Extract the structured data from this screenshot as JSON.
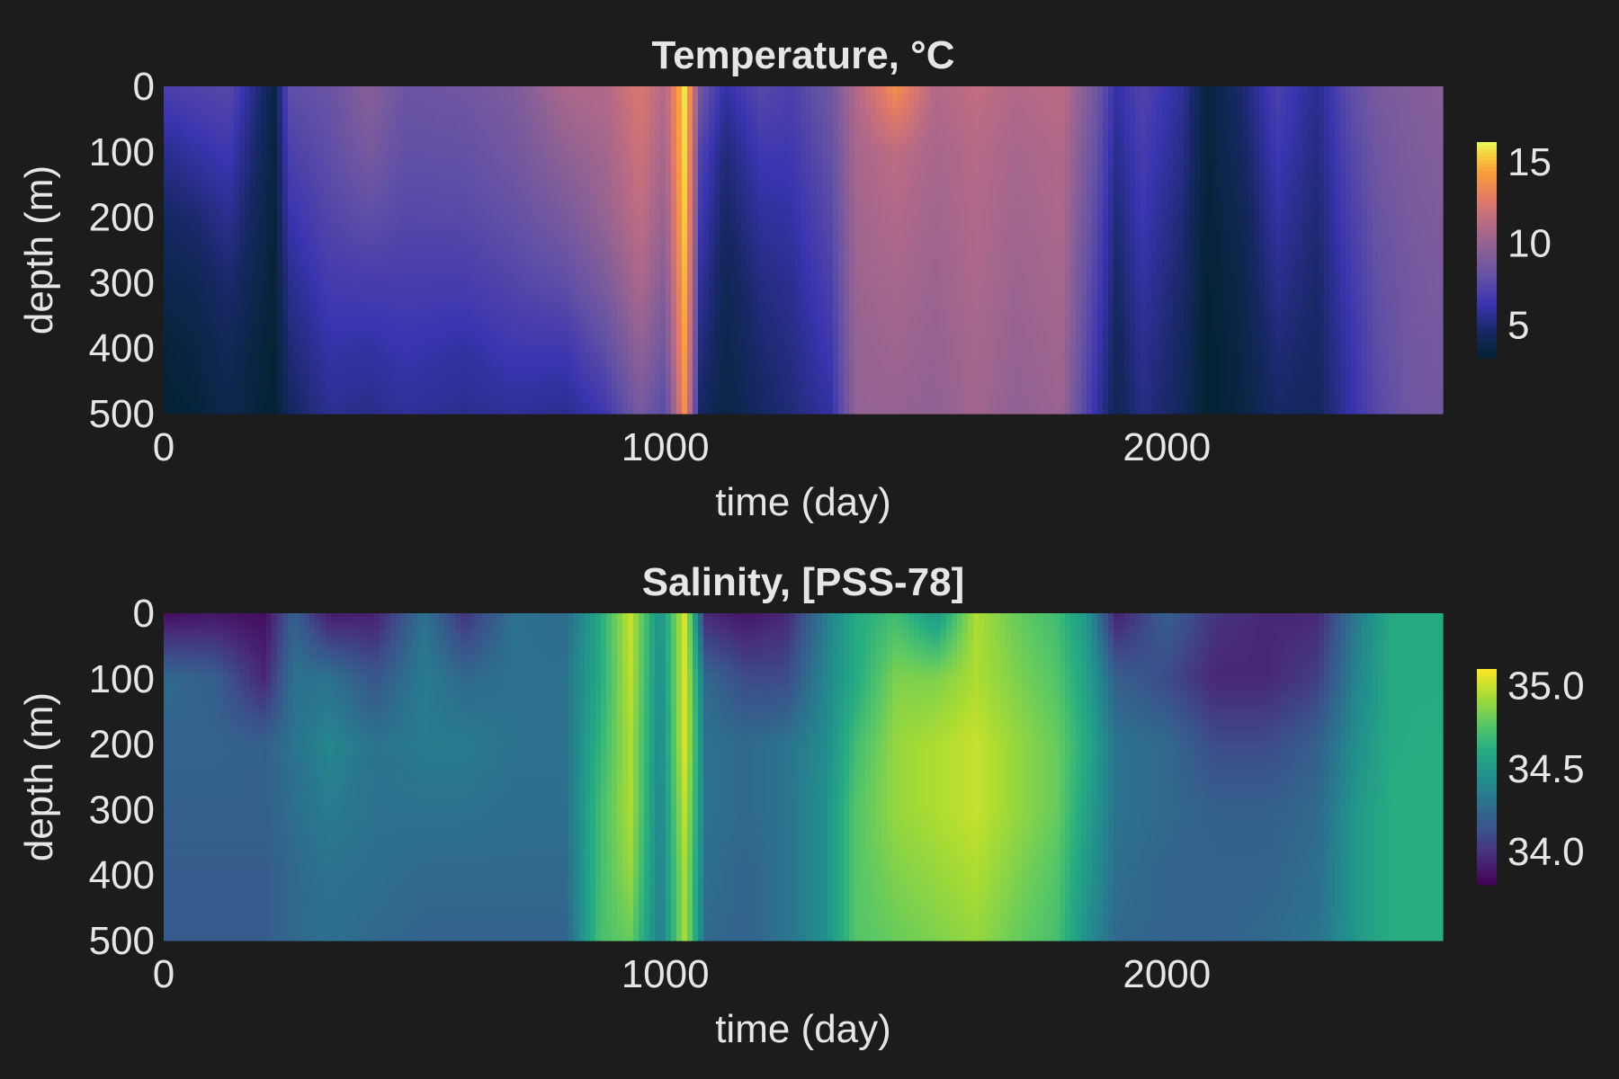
{
  "figure": {
    "background": "#1c1c1c",
    "text_color": "#e6e6e6"
  },
  "chart_data": [
    {
      "type": "heatmap",
      "title": "Temperature, °C",
      "xlabel": "time (day)",
      "ylabel": "depth (m)",
      "xlim": [
        0,
        2550
      ],
      "ylim": [
        500,
        0
      ],
      "y_inverted": true,
      "xticks": [
        0,
        1000,
        2000
      ],
      "yticks": [
        0,
        100,
        200,
        300,
        400,
        500
      ],
      "colormap": "thermal",
      "colorbar": {
        "ticks": [
          5,
          10,
          15
        ],
        "range": [
          3,
          16.2
        ]
      },
      "depths": [
        0,
        100,
        200,
        300,
        400,
        500
      ],
      "columns": [
        {
          "x": 0,
          "values": [
            7.0,
            5.5,
            4.5,
            3.8,
            3.3,
            3.0
          ]
        },
        {
          "x": 60,
          "values": [
            7.2,
            6.0,
            4.8,
            4.0,
            3.5,
            3.2
          ]
        },
        {
          "x": 130,
          "values": [
            7.5,
            6.5,
            5.6,
            4.8,
            4.2,
            3.8
          ]
        },
        {
          "x": 185,
          "values": [
            5.2,
            4.6,
            4.2,
            3.8,
            3.5,
            3.3
          ]
        },
        {
          "x": 220,
          "values": [
            3.6,
            3.4,
            3.3,
            3.2,
            3.1,
            3.0
          ]
        },
        {
          "x": 250,
          "values": [
            7.8,
            7.0,
            6.2,
            5.5,
            4.9,
            4.4
          ]
        },
        {
          "x": 330,
          "values": [
            8.2,
            7.8,
            7.3,
            6.7,
            6.1,
            5.6
          ]
        },
        {
          "x": 410,
          "values": [
            9.5,
            8.8,
            7.8,
            6.8,
            6.0,
            5.4
          ]
        },
        {
          "x": 480,
          "values": [
            8.3,
            7.9,
            7.4,
            6.8,
            6.3,
            5.8
          ]
        },
        {
          "x": 600,
          "values": [
            8.5,
            8.0,
            7.5,
            6.8,
            6.0,
            5.5
          ]
        },
        {
          "x": 700,
          "values": [
            9.0,
            8.6,
            8.0,
            7.3,
            6.5,
            5.8
          ]
        },
        {
          "x": 800,
          "values": [
            10.8,
            9.8,
            8.8,
            7.8,
            6.5,
            5.5
          ]
        },
        {
          "x": 880,
          "values": [
            11.0,
            10.5,
            10.0,
            9.0,
            7.8,
            6.5
          ]
        },
        {
          "x": 950,
          "values": [
            12.5,
            12.0,
            11.5,
            10.8,
            9.8,
            8.8
          ]
        },
        {
          "x": 1000,
          "values": [
            11.0,
            10.6,
            10.0,
            9.3,
            8.5,
            7.5
          ]
        },
        {
          "x": 1040,
          "values": [
            16.0,
            15.8,
            15.5,
            15.0,
            14.6,
            14.0
          ]
        },
        {
          "x": 1070,
          "values": [
            8.5,
            7.2,
            6.5,
            5.8,
            5.2,
            4.5
          ]
        },
        {
          "x": 1120,
          "values": [
            6.0,
            5.0,
            4.5,
            4.0,
            3.8,
            3.5
          ]
        },
        {
          "x": 1190,
          "values": [
            7.5,
            6.5,
            5.8,
            5.2,
            4.8,
            4.5
          ]
        },
        {
          "x": 1250,
          "values": [
            7.0,
            6.5,
            6.0,
            5.6,
            5.3,
            5.0
          ]
        },
        {
          "x": 1330,
          "values": [
            8.5,
            8.0,
            7.5,
            7.0,
            6.5,
            6.0
          ]
        },
        {
          "x": 1380,
          "values": [
            11.0,
            10.6,
            10.4,
            10.2,
            10.0,
            10.0
          ]
        },
        {
          "x": 1460,
          "values": [
            13.8,
            11.5,
            11.0,
            10.6,
            10.3,
            10.0
          ]
        },
        {
          "x": 1540,
          "values": [
            11.0,
            10.6,
            10.4,
            10.2,
            10.0,
            9.8
          ]
        },
        {
          "x": 1620,
          "values": [
            11.6,
            11.2,
            11.0,
            10.8,
            10.6,
            10.4
          ]
        },
        {
          "x": 1700,
          "values": [
            11.0,
            10.6,
            10.4,
            10.2,
            10.0,
            9.8
          ]
        },
        {
          "x": 1790,
          "values": [
            11.4,
            11.0,
            10.8,
            10.6,
            10.4,
            10.2
          ]
        },
        {
          "x": 1860,
          "values": [
            8.5,
            8.0,
            7.5,
            7.0,
            6.5,
            6.0
          ]
        },
        {
          "x": 1900,
          "values": [
            6.0,
            5.5,
            5.0,
            4.6,
            4.2,
            4.0
          ]
        },
        {
          "x": 1950,
          "values": [
            7.2,
            6.8,
            6.4,
            6.0,
            5.6,
            5.3
          ]
        },
        {
          "x": 2030,
          "values": [
            5.8,
            5.4,
            5.0,
            4.7,
            4.5,
            4.3
          ]
        },
        {
          "x": 2080,
          "values": [
            3.4,
            3.3,
            3.2,
            3.1,
            3.0,
            3.0
          ]
        },
        {
          "x": 2150,
          "values": [
            4.8,
            4.4,
            4.0,
            3.8,
            3.6,
            3.5
          ]
        },
        {
          "x": 2220,
          "values": [
            7.0,
            6.5,
            6.0,
            5.5,
            5.0,
            4.6
          ]
        },
        {
          "x": 2300,
          "values": [
            5.5,
            5.2,
            4.9,
            4.7,
            4.5,
            4.3
          ]
        },
        {
          "x": 2360,
          "values": [
            7.6,
            7.2,
            6.8,
            6.4,
            6.1,
            5.9
          ]
        },
        {
          "x": 2420,
          "values": [
            8.8,
            8.5,
            8.2,
            7.9,
            7.7,
            7.5
          ]
        },
        {
          "x": 2480,
          "values": [
            9.2,
            9.0,
            8.8,
            8.6,
            8.5,
            8.4
          ]
        },
        {
          "x": 2550,
          "values": [
            9.5,
            9.3,
            9.1,
            8.9,
            8.7,
            8.6
          ]
        }
      ]
    },
    {
      "type": "heatmap",
      "title": "Salinity, [PSS-78]",
      "xlabel": "time (day)",
      "ylabel": "depth (m)",
      "xlim": [
        0,
        2550
      ],
      "ylim": [
        500,
        0
      ],
      "y_inverted": true,
      "xticks": [
        0,
        1000,
        2000
      ],
      "yticks": [
        0,
        100,
        200,
        300,
        400,
        500
      ],
      "colormap": "viridis",
      "colorbar": {
        "ticks": [
          34.0,
          34.5,
          35.0
        ],
        "range": [
          33.8,
          35.1
        ]
      },
      "depths": [
        0,
        100,
        200,
        300,
        400,
        500
      ],
      "columns": [
        {
          "x": 0,
          "values": [
            33.85,
            34.25,
            34.22,
            34.2,
            34.18,
            34.18
          ]
        },
        {
          "x": 100,
          "values": [
            33.88,
            34.2,
            34.22,
            34.2,
            34.18,
            34.18
          ]
        },
        {
          "x": 200,
          "values": [
            33.85,
            33.95,
            34.2,
            34.2,
            34.18,
            34.18
          ]
        },
        {
          "x": 260,
          "values": [
            34.2,
            34.3,
            34.3,
            34.28,
            34.25,
            34.25
          ]
        },
        {
          "x": 330,
          "values": [
            33.9,
            34.3,
            34.4,
            34.35,
            34.3,
            34.28
          ]
        },
        {
          "x": 420,
          "values": [
            33.92,
            34.15,
            34.3,
            34.3,
            34.28,
            34.25
          ]
        },
        {
          "x": 520,
          "values": [
            34.3,
            34.35,
            34.35,
            34.3,
            34.25,
            34.22
          ]
        },
        {
          "x": 600,
          "values": [
            34.0,
            34.25,
            34.35,
            34.3,
            34.25,
            34.22
          ]
        },
        {
          "x": 700,
          "values": [
            34.3,
            34.3,
            34.3,
            34.28,
            34.25,
            34.22
          ]
        },
        {
          "x": 800,
          "values": [
            34.25,
            34.3,
            34.3,
            34.28,
            34.25,
            34.22
          ]
        },
        {
          "x": 870,
          "values": [
            34.6,
            34.6,
            34.65,
            34.7,
            34.7,
            34.72
          ]
        },
        {
          "x": 930,
          "values": [
            35.0,
            34.98,
            34.95,
            34.95,
            34.9,
            34.8
          ]
        },
        {
          "x": 990,
          "values": [
            34.45,
            34.42,
            34.4,
            34.38,
            34.36,
            34.35
          ]
        },
        {
          "x": 1040,
          "values": [
            35.05,
            35.05,
            35.05,
            35.0,
            34.95,
            34.95
          ]
        },
        {
          "x": 1080,
          "values": [
            33.95,
            34.25,
            34.3,
            34.3,
            34.28,
            34.25
          ]
        },
        {
          "x": 1160,
          "values": [
            33.88,
            34.1,
            34.25,
            34.25,
            34.22,
            34.22
          ]
        },
        {
          "x": 1240,
          "values": [
            33.95,
            34.1,
            34.3,
            34.3,
            34.3,
            34.3
          ]
        },
        {
          "x": 1320,
          "values": [
            34.35,
            34.4,
            34.42,
            34.45,
            34.45,
            34.45
          ]
        },
        {
          "x": 1380,
          "values": [
            34.6,
            34.6,
            34.7,
            34.75,
            34.75,
            34.75
          ]
        },
        {
          "x": 1460,
          "values": [
            34.7,
            34.85,
            34.9,
            34.9,
            34.85,
            34.8
          ]
        },
        {
          "x": 1540,
          "values": [
            34.5,
            34.85,
            34.95,
            34.95,
            34.9,
            34.85
          ]
        },
        {
          "x": 1620,
          "values": [
            34.95,
            34.95,
            35.0,
            35.0,
            34.95,
            34.9
          ]
        },
        {
          "x": 1700,
          "values": [
            34.8,
            34.85,
            34.9,
            34.9,
            34.85,
            34.8
          ]
        },
        {
          "x": 1780,
          "values": [
            34.7,
            34.75,
            34.8,
            34.8,
            34.75,
            34.72
          ]
        },
        {
          "x": 1840,
          "values": [
            34.5,
            34.55,
            34.6,
            34.55,
            34.5,
            34.45
          ]
        },
        {
          "x": 1900,
          "values": [
            33.92,
            34.2,
            34.3,
            34.3,
            34.28,
            34.25
          ]
        },
        {
          "x": 2000,
          "values": [
            34.2,
            34.1,
            34.25,
            34.25,
            34.22,
            34.22
          ]
        },
        {
          "x": 2100,
          "values": [
            34.0,
            33.95,
            34.1,
            34.2,
            34.22,
            34.22
          ]
        },
        {
          "x": 2200,
          "values": [
            33.95,
            33.95,
            34.1,
            34.2,
            34.22,
            34.25
          ]
        },
        {
          "x": 2300,
          "values": [
            33.95,
            34.05,
            34.2,
            34.25,
            34.28,
            34.3
          ]
        },
        {
          "x": 2380,
          "values": [
            34.35,
            34.4,
            34.45,
            34.5,
            34.5,
            34.5
          ]
        },
        {
          "x": 2450,
          "values": [
            34.6,
            34.6,
            34.6,
            34.62,
            34.62,
            34.62
          ]
        },
        {
          "x": 2550,
          "values": [
            34.6,
            34.6,
            34.62,
            34.62,
            34.62,
            34.62
          ]
        }
      ]
    }
  ]
}
